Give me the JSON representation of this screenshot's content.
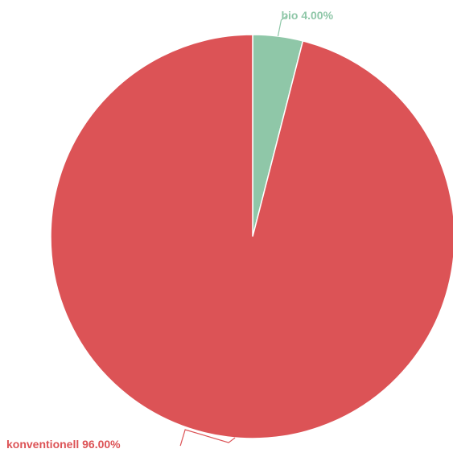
{
  "chart_data": {
    "type": "pie",
    "slices": [
      {
        "label": "bio",
        "value": 4.0,
        "display": "bio 4.00%",
        "color": "#8fc7a8"
      },
      {
        "label": "konventionell",
        "value": 96.0,
        "display": "konventionell 96.00%",
        "color": "#dc5356"
      }
    ],
    "start_angle": "12 o'clock",
    "direction": "clockwise",
    "legend": "none",
    "label_style": "outside-with-leader-lines"
  }
}
